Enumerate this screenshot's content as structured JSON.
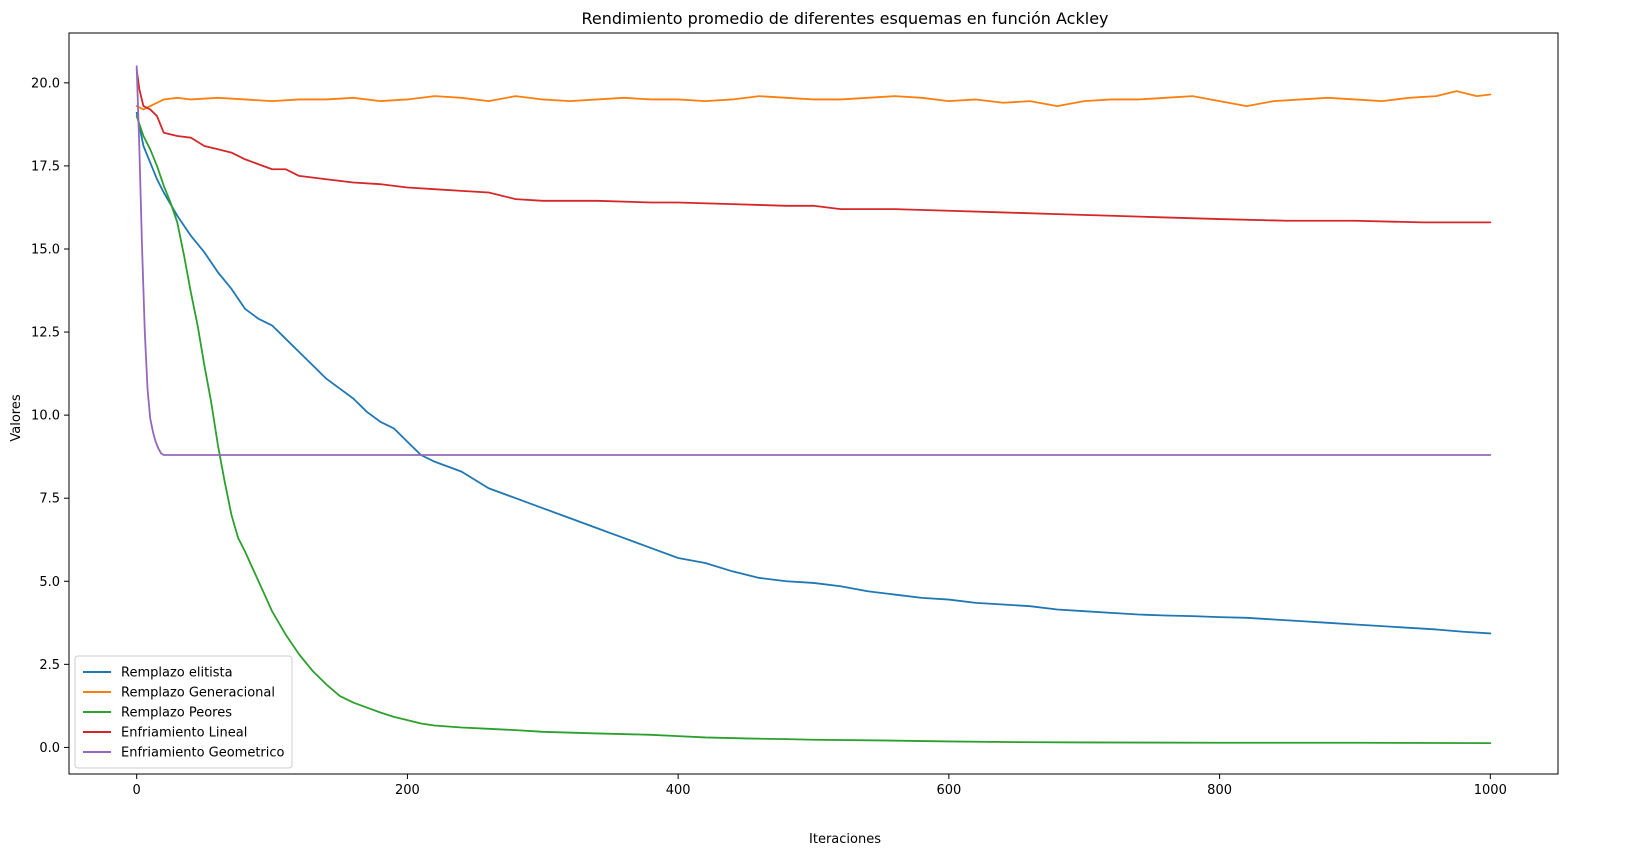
{
  "chart_data": {
    "type": "line",
    "title": "Rendimiento promedio de diferentes esquemas en función Ackley",
    "xlabel": "Iteraciones",
    "ylabel": "Valores",
    "xlim": [
      -50,
      1050
    ],
    "ylim": [
      -0.8,
      21.5
    ],
    "xticks": [
      0,
      200,
      400,
      600,
      800,
      1000
    ],
    "xtick_labels": [
      "0",
      "200",
      "400",
      "600",
      "800",
      "1000"
    ],
    "yticks": [
      0.0,
      2.5,
      5.0,
      7.5,
      10.0,
      12.5,
      15.0,
      17.5,
      20.0
    ],
    "ytick_labels": [
      "0.0",
      "2.5",
      "5.0",
      "7.5",
      "10.0",
      "12.5",
      "15.0",
      "17.5",
      "20.0"
    ],
    "grid": false,
    "legend_position": "lower-left",
    "series": [
      {
        "name": "Remplazo elitista",
        "color": "#1f77b4",
        "x": [
          0,
          5,
          10,
          15,
          20,
          30,
          40,
          50,
          60,
          70,
          80,
          90,
          100,
          110,
          120,
          130,
          140,
          150,
          160,
          170,
          180,
          190,
          200,
          210,
          220,
          240,
          260,
          280,
          300,
          320,
          340,
          360,
          380,
          400,
          420,
          440,
          460,
          480,
          500,
          520,
          540,
          560,
          580,
          600,
          620,
          640,
          660,
          680,
          700,
          720,
          740,
          760,
          780,
          800,
          820,
          840,
          860,
          880,
          900,
          920,
          940,
          960,
          980,
          1000
        ],
        "y": [
          19.1,
          18.1,
          17.6,
          17.1,
          16.7,
          16.0,
          15.4,
          14.9,
          14.3,
          13.8,
          13.2,
          12.9,
          12.7,
          12.3,
          11.9,
          11.5,
          11.1,
          10.8,
          10.5,
          10.1,
          9.8,
          9.6,
          9.2,
          8.8,
          8.6,
          8.3,
          7.8,
          7.5,
          7.2,
          6.9,
          6.6,
          6.3,
          6.0,
          5.7,
          5.55,
          5.3,
          5.1,
          5.0,
          4.95,
          4.85,
          4.7,
          4.6,
          4.5,
          4.45,
          4.35,
          4.3,
          4.25,
          4.15,
          4.1,
          4.05,
          4.0,
          3.97,
          3.95,
          3.92,
          3.9,
          3.85,
          3.8,
          3.75,
          3.7,
          3.65,
          3.6,
          3.55,
          3.48,
          3.43
        ]
      },
      {
        "name": "Remplazo Generacional",
        "color": "#ff7f0e",
        "x": [
          0,
          5,
          10,
          15,
          20,
          30,
          40,
          60,
          80,
          100,
          120,
          140,
          160,
          180,
          200,
          220,
          240,
          260,
          280,
          300,
          320,
          340,
          360,
          380,
          400,
          420,
          440,
          460,
          480,
          500,
          520,
          540,
          560,
          580,
          600,
          620,
          640,
          660,
          680,
          700,
          720,
          740,
          760,
          780,
          800,
          820,
          840,
          860,
          880,
          900,
          920,
          940,
          960,
          975,
          990,
          1000
        ],
        "y": [
          19.3,
          19.2,
          19.3,
          19.4,
          19.5,
          19.55,
          19.5,
          19.55,
          19.5,
          19.45,
          19.5,
          19.5,
          19.55,
          19.45,
          19.5,
          19.6,
          19.55,
          19.45,
          19.6,
          19.5,
          19.45,
          19.5,
          19.55,
          19.5,
          19.5,
          19.45,
          19.5,
          19.6,
          19.55,
          19.5,
          19.5,
          19.55,
          19.6,
          19.55,
          19.45,
          19.5,
          19.4,
          19.45,
          19.3,
          19.45,
          19.5,
          19.5,
          19.55,
          19.6,
          19.45,
          19.3,
          19.45,
          19.5,
          19.55,
          19.5,
          19.45,
          19.55,
          19.6,
          19.75,
          19.6,
          19.65
        ]
      },
      {
        "name": "Remplazo Peores",
        "color": "#2ca02c",
        "x": [
          0,
          5,
          10,
          15,
          20,
          25,
          30,
          35,
          40,
          45,
          50,
          55,
          60,
          65,
          70,
          75,
          80,
          90,
          100,
          110,
          120,
          130,
          140,
          150,
          160,
          170,
          180,
          190,
          200,
          210,
          220,
          240,
          260,
          280,
          300,
          340,
          380,
          400,
          420,
          450,
          480,
          500,
          550,
          600,
          650,
          700,
          800,
          900,
          1000
        ],
        "y": [
          19.0,
          18.4,
          18.0,
          17.5,
          16.9,
          16.4,
          15.8,
          14.8,
          13.7,
          12.7,
          11.5,
          10.4,
          9.1,
          8.0,
          7.0,
          6.3,
          5.9,
          5.0,
          4.1,
          3.4,
          2.8,
          2.3,
          1.9,
          1.55,
          1.35,
          1.2,
          1.05,
          0.92,
          0.82,
          0.72,
          0.66,
          0.6,
          0.56,
          0.52,
          0.47,
          0.42,
          0.38,
          0.34,
          0.3,
          0.27,
          0.25,
          0.23,
          0.21,
          0.18,
          0.16,
          0.15,
          0.14,
          0.14,
          0.13
        ]
      },
      {
        "name": "Enfriamiento Lineal",
        "color": "#d62728",
        "x": [
          0,
          2,
          5,
          10,
          15,
          20,
          30,
          40,
          50,
          60,
          70,
          80,
          90,
          100,
          110,
          120,
          140,
          160,
          180,
          200,
          220,
          240,
          260,
          280,
          300,
          340,
          380,
          400,
          440,
          480,
          500,
          520,
          560,
          600,
          640,
          680,
          720,
          760,
          800,
          850,
          900,
          950,
          1000
        ],
        "y": [
          20.4,
          19.8,
          19.3,
          19.2,
          19.0,
          18.5,
          18.4,
          18.35,
          18.1,
          18.0,
          17.9,
          17.7,
          17.55,
          17.4,
          17.4,
          17.2,
          17.1,
          17.0,
          16.95,
          16.85,
          16.8,
          16.75,
          16.7,
          16.5,
          16.45,
          16.45,
          16.4,
          16.4,
          16.35,
          16.3,
          16.3,
          16.2,
          16.2,
          16.15,
          16.1,
          16.05,
          16.0,
          15.95,
          15.9,
          15.85,
          15.85,
          15.8,
          15.8
        ]
      },
      {
        "name": "Enfriamiento Geometrico",
        "color": "#9467bd",
        "x": [
          0,
          2,
          4,
          6,
          8,
          10,
          12,
          14,
          16,
          18,
          20,
          25,
          30,
          50,
          100,
          200,
          400,
          600,
          800,
          1000
        ],
        "y": [
          20.5,
          18.0,
          15.0,
          12.5,
          10.8,
          9.9,
          9.5,
          9.2,
          9.0,
          8.85,
          8.8,
          8.8,
          8.8,
          8.8,
          8.8,
          8.8,
          8.8,
          8.8,
          8.8,
          8.8
        ]
      }
    ]
  }
}
